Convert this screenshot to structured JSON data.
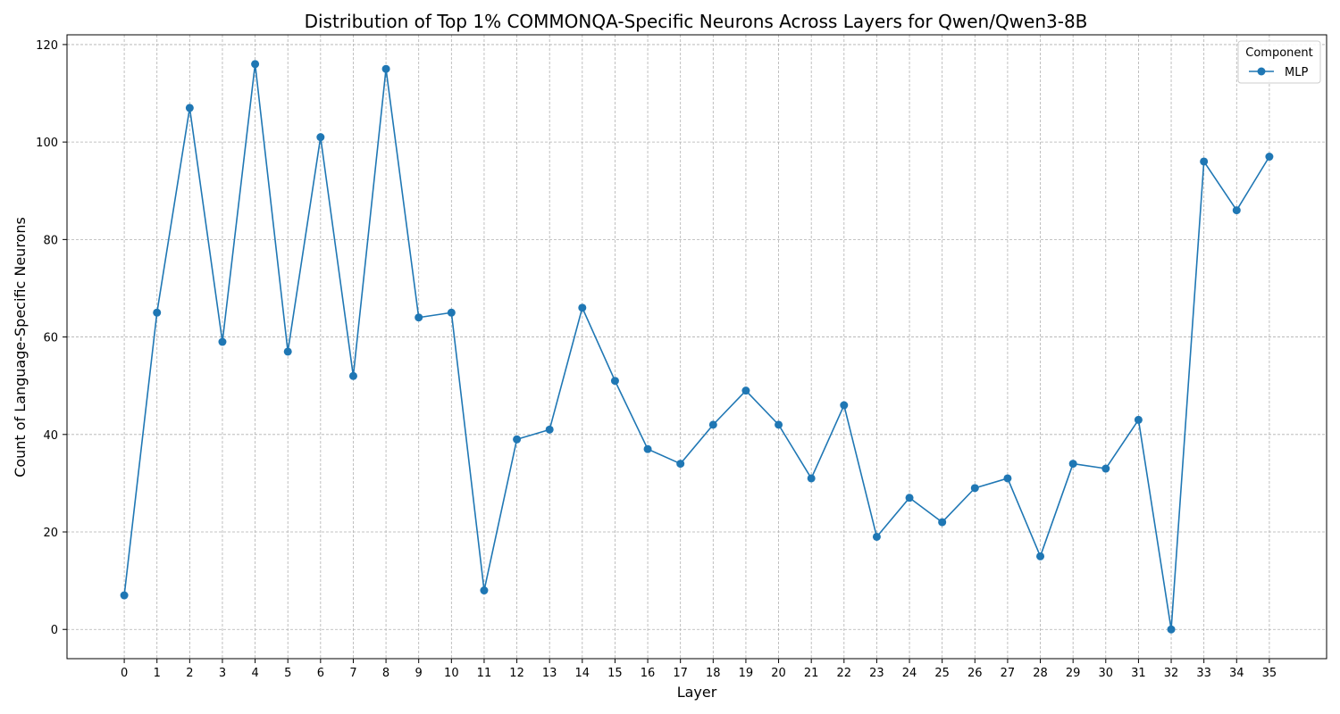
{
  "chart_data": {
    "type": "line",
    "title": "Distribution of Top 1% COMMONQA-Specific Neurons Across Layers for Qwen/Qwen3-8B",
    "xlabel": "Layer",
    "ylabel": "Count of Language-Specific Neurons",
    "x": [
      0,
      1,
      2,
      3,
      4,
      5,
      6,
      7,
      8,
      9,
      10,
      11,
      12,
      13,
      14,
      15,
      16,
      17,
      18,
      19,
      20,
      21,
      22,
      23,
      24,
      25,
      26,
      27,
      28,
      29,
      30,
      31,
      32,
      33,
      34,
      35
    ],
    "xlim": [
      -1.75,
      36.75
    ],
    "ylim": [
      -6,
      122
    ],
    "yticks": [
      0,
      20,
      40,
      60,
      80,
      100,
      120
    ],
    "grid": true,
    "legend": {
      "title": "Component",
      "placement": "top-right"
    },
    "series": [
      {
        "name": "MLP",
        "color": "#1f77b4",
        "values": [
          7,
          65,
          107,
          59,
          116,
          57,
          101,
          52,
          115,
          64,
          65,
          8,
          39,
          41,
          66,
          51,
          37,
          34,
          42,
          49,
          42,
          31,
          46,
          19,
          27,
          22,
          29,
          31,
          15,
          34,
          33,
          43,
          0,
          96,
          86,
          97
        ]
      }
    ]
  }
}
